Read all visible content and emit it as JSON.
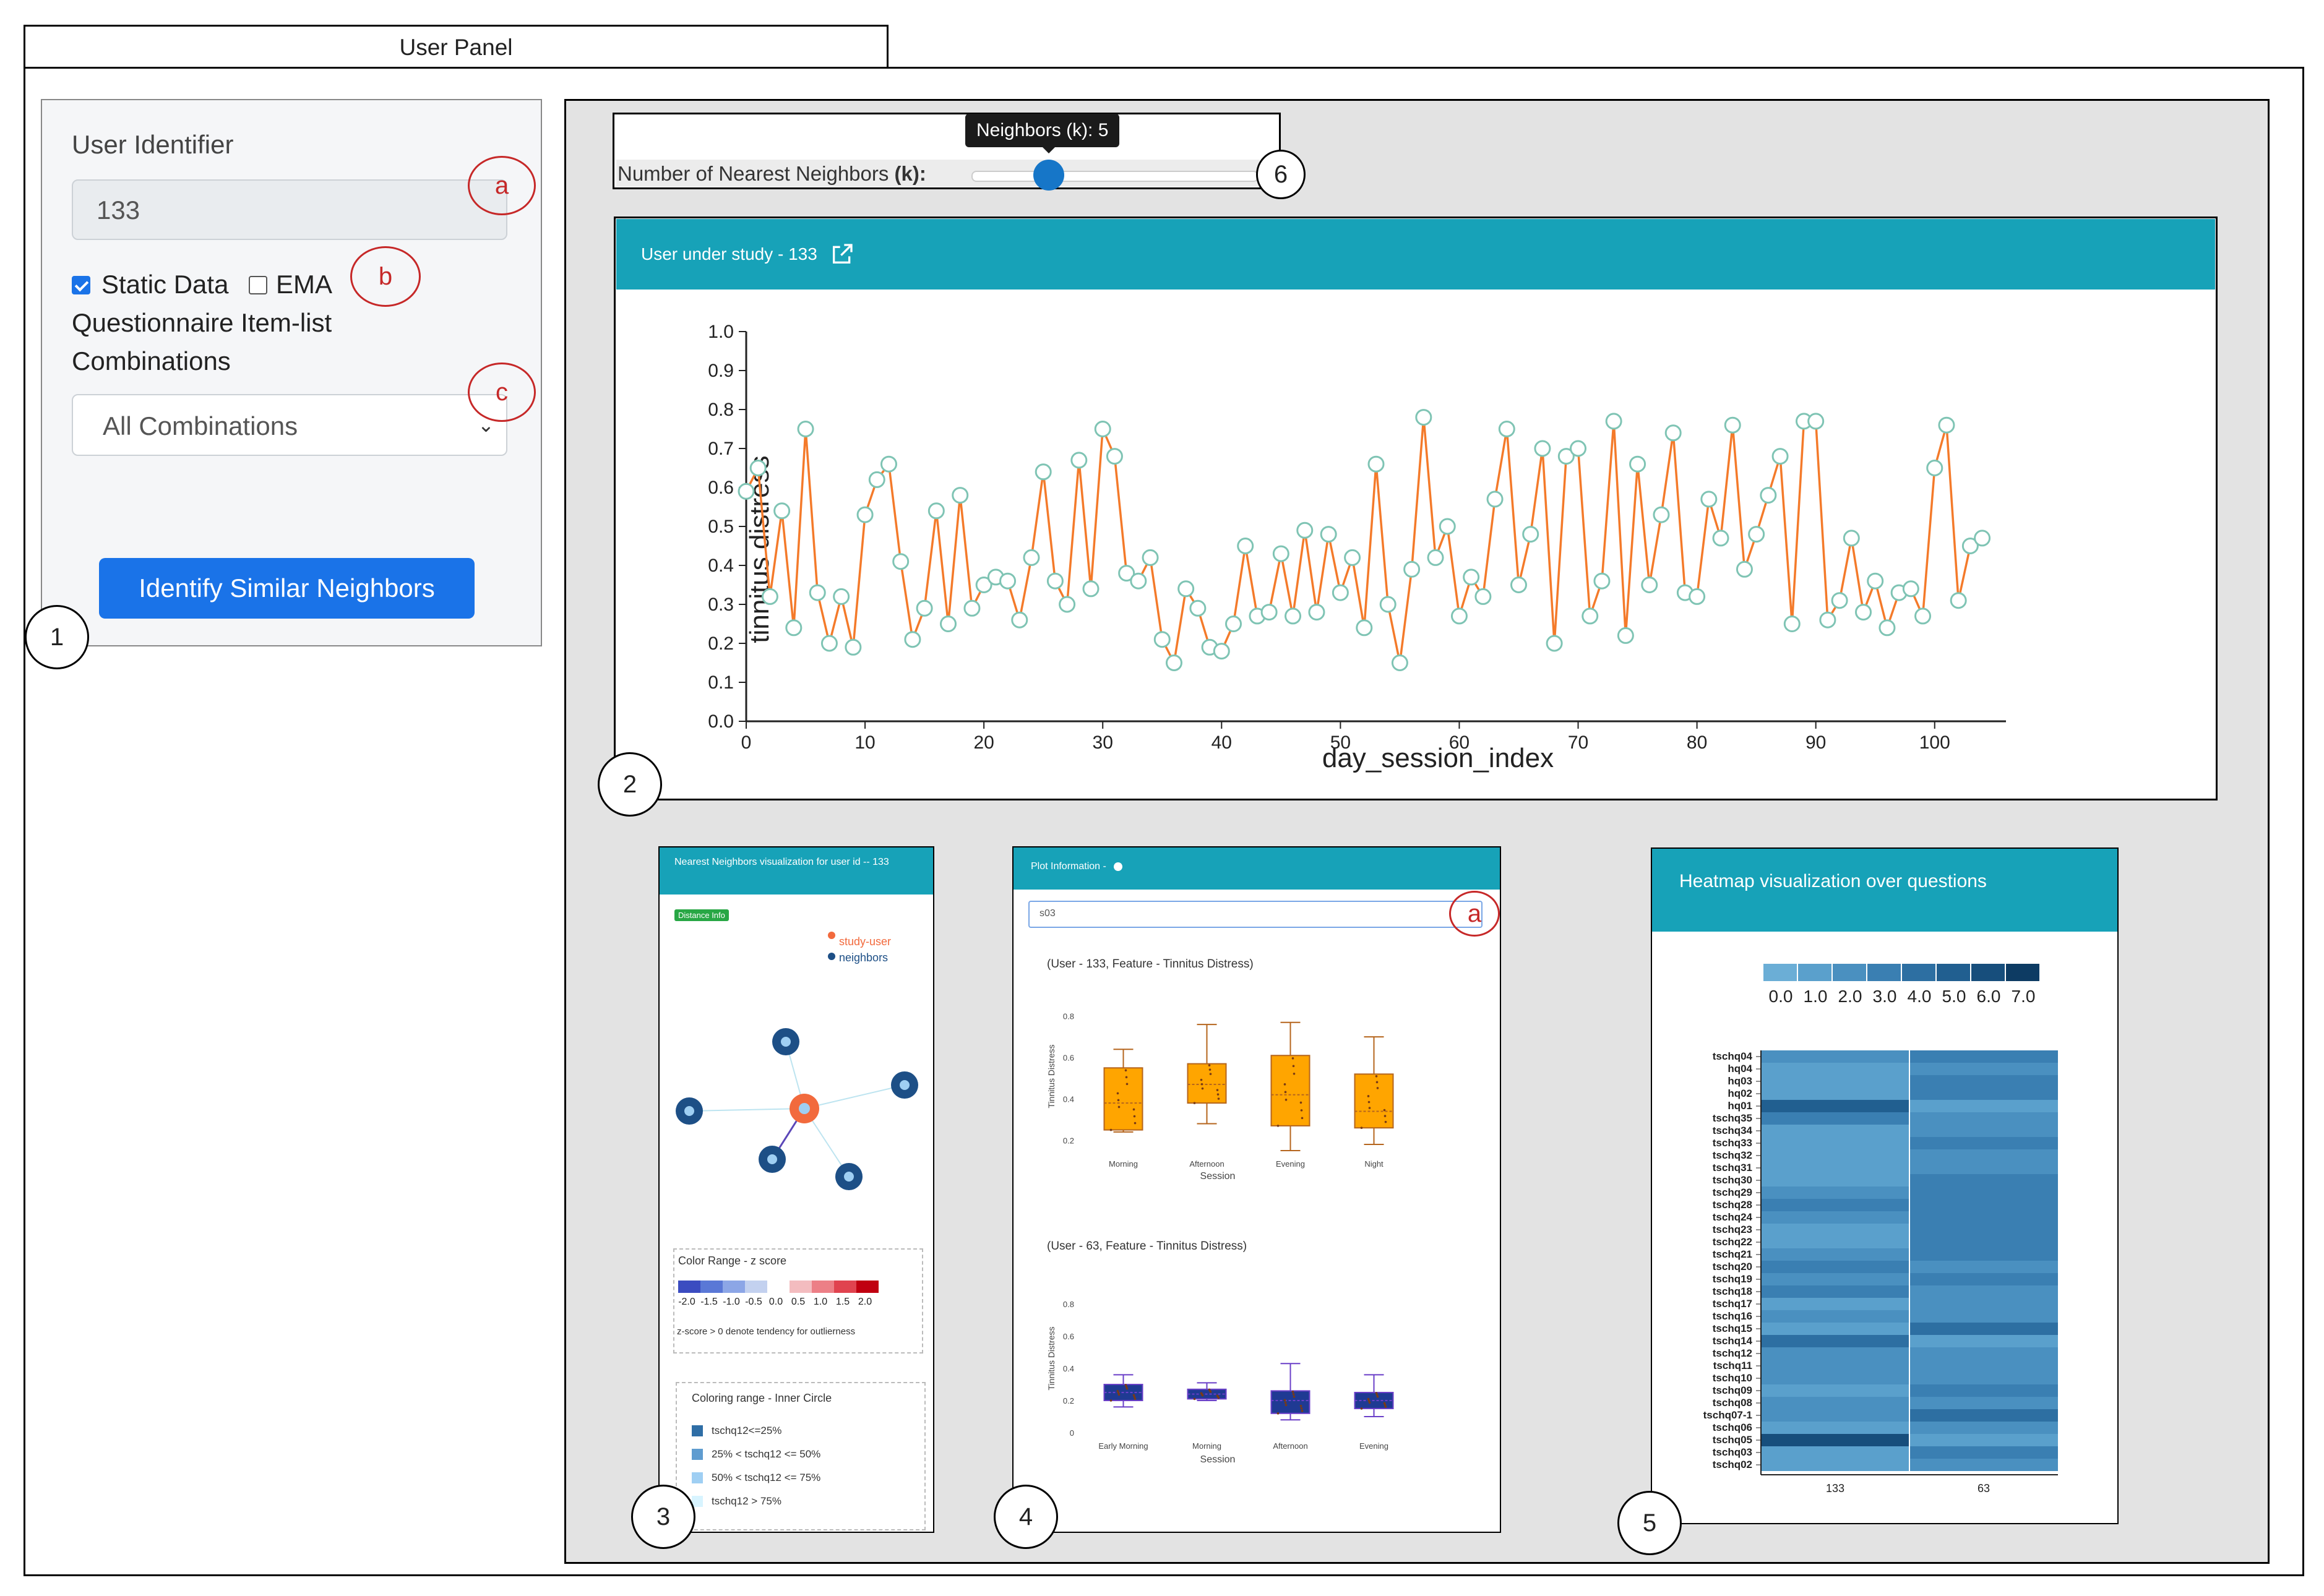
{
  "tab_title": "User Panel",
  "user_panel": {
    "identifier_label": "User Identifier",
    "identifier_value": "133",
    "static_data_label": "Static Data",
    "static_data_checked": true,
    "ema_label": "EMA",
    "ema_checked": false,
    "combinations_label_line1": "Questionnaire Item-list",
    "combinations_label_line2": "Combinations",
    "combinations_value": "All Combinations",
    "button_label": "Identify Similar Neighbors"
  },
  "markers": {
    "a": "a",
    "b": "b",
    "c": "c",
    "a2": "a"
  },
  "numbers": {
    "n1": "1",
    "n2": "2",
    "n3": "3",
    "n4": "4",
    "n5": "5",
    "n6": "6"
  },
  "slider": {
    "label": "Number of Nearest Neighbors",
    "label_k": "(k):",
    "tooltip": "Neighbors (k): 5",
    "value": 5
  },
  "user_study": {
    "header": "User under study - 133",
    "icon": "external-link-icon"
  },
  "chart_data": [
    {
      "type": "line",
      "ylabel": "tinnitus distress",
      "xlabel": "day_session_index",
      "xlim": [
        0,
        106
      ],
      "ylim": [
        0,
        1.0
      ],
      "xticks": [
        0,
        10,
        20,
        30,
        40,
        50,
        60,
        70,
        80,
        90,
        100
      ],
      "yticks": [
        "0.0",
        "0.1",
        "0.2",
        "0.3",
        "0.4",
        "0.5",
        "0.6",
        "0.7",
        "0.8",
        "0.9",
        "1.0"
      ],
      "line_color": "#f47a2a",
      "marker_color": "#7fc4b4",
      "values": [
        0.59,
        0.65,
        0.32,
        0.54,
        0.24,
        0.75,
        0.33,
        0.2,
        0.32,
        0.19,
        0.53,
        0.62,
        0.66,
        0.41,
        0.21,
        0.29,
        0.54,
        0.25,
        0.58,
        0.29,
        0.35,
        0.37,
        0.36,
        0.26,
        0.42,
        0.64,
        0.36,
        0.3,
        0.67,
        0.34,
        0.75,
        0.68,
        0.38,
        0.36,
        0.42,
        0.21,
        0.15,
        0.34,
        0.29,
        0.19,
        0.18,
        0.25,
        0.45,
        0.27,
        0.28,
        0.43,
        0.27,
        0.49,
        0.28,
        0.48,
        0.33,
        0.42,
        0.24,
        0.66,
        0.3,
        0.15,
        0.39,
        0.78,
        0.42,
        0.5,
        0.27,
        0.37,
        0.32,
        0.57,
        0.75,
        0.35,
        0.48,
        0.7,
        0.2,
        0.68,
        0.7,
        0.27,
        0.36,
        0.77,
        0.22,
        0.66,
        0.35,
        0.53,
        0.74,
        0.33,
        0.32,
        0.57,
        0.47,
        0.76,
        0.39,
        0.48,
        0.58,
        0.68,
        0.25,
        0.77,
        0.77,
        0.26,
        0.31,
        0.47,
        0.28,
        0.36,
        0.24,
        0.33,
        0.34,
        0.27,
        0.65,
        0.76,
        0.31,
        0.45,
        0.47
      ]
    },
    {
      "type": "box",
      "title": "(User - 133, Feature - Tinnitus Distress)",
      "categories": [
        "Morning",
        "Afternoon",
        "Evening",
        "Night"
      ],
      "xlabel": "Session",
      "ylabel": "Tinnitus Distress",
      "yticks": [
        "0.2",
        "0.4",
        "0.6",
        "0.8"
      ],
      "ylim": [
        0.15,
        0.85
      ],
      "box_color": "#ffa500",
      "boxes": [
        {
          "q1": 0.25,
          "med": 0.38,
          "q3": 0.55,
          "min": 0.24,
          "max": 0.64
        },
        {
          "q1": 0.38,
          "med": 0.47,
          "q3": 0.57,
          "min": 0.28,
          "max": 0.76
        },
        {
          "q1": 0.27,
          "med": 0.42,
          "q3": 0.61,
          "min": 0.15,
          "max": 0.77
        },
        {
          "q1": 0.26,
          "med": 0.34,
          "q3": 0.52,
          "min": 0.18,
          "max": 0.7
        }
      ]
    },
    {
      "type": "box",
      "title": "(User - 63, Feature - Tinnitus Distress)",
      "categories": [
        "Early Morning",
        "Morning",
        "Afternoon",
        "Evening"
      ],
      "xlabel": "Session",
      "ylabel": "Tinnitus Distress",
      "yticks": [
        "0",
        "0.2",
        "0.4",
        "0.6",
        "0.8"
      ],
      "ylim": [
        0,
        0.9
      ],
      "box_color": "#1f3a93",
      "boxes": [
        {
          "q1": 0.2,
          "med": 0.25,
          "q3": 0.3,
          "min": 0.16,
          "max": 0.36
        },
        {
          "q1": 0.21,
          "med": 0.24,
          "q3": 0.27,
          "min": 0.2,
          "max": 0.31
        },
        {
          "q1": 0.12,
          "med": 0.2,
          "q3": 0.26,
          "min": 0.08,
          "max": 0.43
        },
        {
          "q1": 0.15,
          "med": 0.2,
          "q3": 0.25,
          "min": 0.1,
          "max": 0.36
        }
      ]
    },
    {
      "type": "heatmap",
      "title": "Heatmap visualization over questions",
      "legend_labels": [
        "0.0",
        "1.0",
        "2.0",
        "3.0",
        "4.0",
        "5.0",
        "6.0",
        "7.0"
      ],
      "legend_colors": [
        "#6baed6",
        "#5aa0cc",
        "#4a90c0",
        "#3a7fb2",
        "#2d6fa2",
        "#215f90",
        "#174e7c",
        "#0d3b63"
      ],
      "columns": [
        "133",
        "63"
      ],
      "rows": [
        "tschq04",
        "hq04",
        "hq03",
        "hq02",
        "hq01",
        "tschq35",
        "tschq34",
        "tschq33",
        "tschq32",
        "tschq31",
        "tschq30",
        "tschq29",
        "tschq28",
        "tschq24",
        "tschq23",
        "tschq22",
        "tschq21",
        "tschq20",
        "tschq19",
        "tschq18",
        "tschq17",
        "tschq16",
        "tschq15",
        "tschq14",
        "tschq12",
        "tschq11",
        "tschq10",
        "tschq09",
        "tschq08",
        "tschq07-1",
        "tschq06",
        "tschq05",
        "tschq03",
        "tschq02"
      ],
      "values": [
        [
          2,
          3
        ],
        [
          1,
          2
        ],
        [
          1,
          3
        ],
        [
          1,
          3
        ],
        [
          5,
          1
        ],
        [
          3,
          2
        ],
        [
          1,
          2
        ],
        [
          1,
          3
        ],
        [
          1,
          2
        ],
        [
          1,
          2
        ],
        [
          1,
          3
        ],
        [
          2,
          3
        ],
        [
          3,
          3
        ],
        [
          2,
          3
        ],
        [
          1,
          3
        ],
        [
          1,
          3
        ],
        [
          2,
          3
        ],
        [
          3,
          2
        ],
        [
          2,
          3
        ],
        [
          3,
          2
        ],
        [
          1,
          2
        ],
        [
          2,
          2
        ],
        [
          1,
          4
        ],
        [
          4,
          1
        ],
        [
          2,
          2
        ],
        [
          2,
          2
        ],
        [
          2,
          2
        ],
        [
          1,
          3
        ],
        [
          2,
          2
        ],
        [
          2,
          4
        ],
        [
          1,
          2
        ],
        [
          6,
          1
        ],
        [
          1,
          3
        ],
        [
          1,
          2
        ]
      ]
    }
  ],
  "neighbors_card": {
    "header": "Nearest Neighbors visualization for user id -- 133",
    "distance_badge": "Distance Info",
    "legend_study": "study-user",
    "legend_neighbors": "neighbors",
    "colors": {
      "study": "#f26a3d",
      "neighbor": "#1d4f86"
    },
    "zscore_title": "Color Range - z score",
    "zscore_labels": [
      "-2.0",
      "-1.5",
      "-1.0",
      "-0.5",
      "0.0",
      "0.5",
      "1.0",
      "1.5",
      "2.0"
    ],
    "zscore_note": "z-score > 0 denote tendency for outlierness",
    "inner_title": "Coloring range - Inner Circle",
    "inner_items": [
      {
        "label": "tschq12<=25%",
        "color": "#2f6ea6"
      },
      {
        "label": "25% < tschq12 <= 50%",
        "color": "#5f9cd0"
      },
      {
        "label": "50% < tschq12 <= 75%",
        "color": "#9fcff3"
      },
      {
        "label": "tschq12 > 75%",
        "color": "#d8f4ff"
      }
    ]
  },
  "plot_card": {
    "header": "Plot Information -",
    "search_value": "s03"
  }
}
